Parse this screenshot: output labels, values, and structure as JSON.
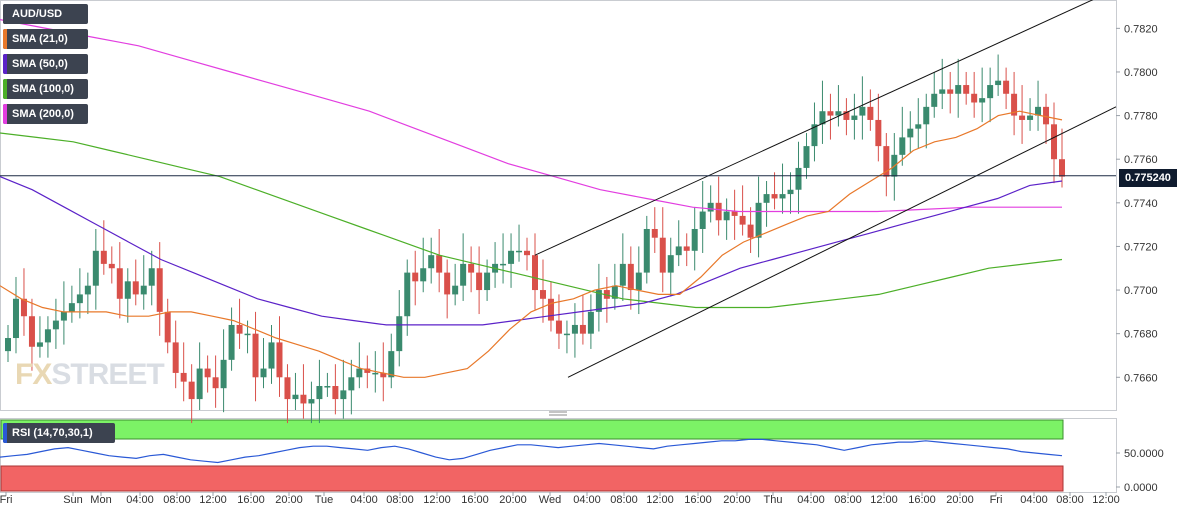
{
  "chart_data": {
    "type": "candlestick",
    "symbol": "AUD/USD",
    "last_price": "0.775240",
    "indicators": [
      {
        "label": "SMA (21,0)",
        "color": "#e8782a"
      },
      {
        "label": "SMA (50,0)",
        "color": "#5b22c8"
      },
      {
        "label": "SMA (100,0)",
        "color": "#4caf28"
      },
      {
        "label": "SMA (200,0)",
        "color": "#e23ee0"
      }
    ],
    "rsi_label": "RSI (14,70,30,1)",
    "y_ticks": [
      "0.7820",
      "0.7800",
      "0.7780",
      "0.7760",
      "0.7740",
      "0.7720",
      "0.7700",
      "0.7680",
      "0.7660"
    ],
    "ylim": [
      0.7645,
      0.7833
    ],
    "rsi_ticks": [
      "50.0000",
      "0.0000"
    ],
    "x_ticks": [
      "Fri",
      "Sun",
      "Mon",
      "04:00",
      "08:00",
      "12:00",
      "16:00",
      "20:00",
      "Tue",
      "04:00",
      "08:00",
      "12:00",
      "16:00",
      "20:00",
      "Wed",
      "04:00",
      "08:00",
      "12:00",
      "16:00",
      "20:00",
      "Thu",
      "04:00",
      "08:00",
      "12:00",
      "16:00",
      "20:00",
      "Fri",
      "04:00",
      "08:00",
      "12:00"
    ],
    "candles_close": [
      0.7678,
      0.7696,
      0.7688,
      0.7674,
      0.7676,
      0.7682,
      0.7686,
      0.769,
      0.7694,
      0.7698,
      0.7702,
      0.7718,
      0.7712,
      0.771,
      0.7696,
      0.7704,
      0.7698,
      0.7702,
      0.771,
      0.769,
      0.7676,
      0.7662,
      0.7658,
      0.765,
      0.7664,
      0.766,
      0.7655,
      0.7668,
      0.7684,
      0.768,
      0.768,
      0.766,
      0.7664,
      0.7676,
      0.766,
      0.765,
      0.7652,
      0.7648,
      0.765,
      0.7656,
      0.7656,
      0.765,
      0.7654,
      0.766,
      0.7664,
      0.7662,
      0.7662,
      0.766,
      0.7672,
      0.7688,
      0.7708,
      0.7704,
      0.771,
      0.7716,
      0.7708,
      0.7698,
      0.7702,
      0.7712,
      0.7708,
      0.77,
      0.7708,
      0.7712,
      0.7712,
      0.7718,
      0.7718,
      0.7716,
      0.77,
      0.7696,
      0.7686,
      0.768,
      0.768,
      0.7684,
      0.768,
      0.769,
      0.77,
      0.7696,
      0.7702,
      0.7712,
      0.77,
      0.7708,
      0.7728,
      0.7724,
      0.7708,
      0.7716,
      0.772,
      0.7718,
      0.7728,
      0.7736,
      0.774,
      0.7732,
      0.7736,
      0.7734,
      0.773,
      0.7724,
      0.774,
      0.7744,
      0.7742,
      0.7744,
      0.7746,
      0.7756,
      0.7766,
      0.7776,
      0.7782,
      0.778,
      0.7782,
      0.7778,
      0.778,
      0.7784,
      0.7778,
      0.7766,
      0.7752,
      0.7762,
      0.777,
      0.7774,
      0.7776,
      0.7784,
      0.779,
      0.7792,
      0.779,
      0.7794,
      0.779,
      0.7786,
      0.7788,
      0.7794,
      0.7796,
      0.779,
      0.778,
      0.7778,
      0.778,
      0.7784,
      0.7776,
      0.776,
      0.7752
    ],
    "sma21": [
      0.7702,
      0.7696,
      0.7692,
      0.769,
      0.769,
      0.769,
      0.7688,
      0.7688,
      0.769,
      0.769,
      0.7688,
      0.7686,
      0.7682,
      0.7678,
      0.7675,
      0.7672,
      0.7668,
      0.7664,
      0.7662,
      0.766,
      0.766,
      0.7662,
      0.7664,
      0.7672,
      0.7682,
      0.769,
      0.7694,
      0.7696,
      0.77,
      0.7702,
      0.77,
      0.7698,
      0.7698,
      0.7706,
      0.7716,
      0.7722,
      0.7726,
      0.773,
      0.7734,
      0.7736,
      0.7744,
      0.775,
      0.7756,
      0.7764,
      0.7768,
      0.777,
      0.7774,
      0.778,
      0.7782,
      0.778,
      0.7778
    ],
    "sma50": [
      0.7752,
      0.7746,
      0.7738,
      0.773,
      0.7722,
      0.7714,
      0.7708,
      0.7702,
      0.7696,
      0.7692,
      0.7688,
      0.7686,
      0.7684,
      0.7684,
      0.7684,
      0.7684,
      0.7686,
      0.7688,
      0.769,
      0.7692,
      0.7694,
      0.7698,
      0.7704,
      0.771,
      0.7714,
      0.7718,
      0.7722,
      0.7726,
      0.773,
      0.7734,
      0.7738,
      0.7742,
      0.7748,
      0.775
    ],
    "sma100": [
      0.7772,
      0.777,
      0.7768,
      0.7764,
      0.776,
      0.7756,
      0.7752,
      0.7746,
      0.774,
      0.7734,
      0.7728,
      0.7722,
      0.7716,
      0.7712,
      0.7708,
      0.7704,
      0.77,
      0.7696,
      0.7694,
      0.7692,
      0.7692,
      0.7692,
      0.7694,
      0.7696,
      0.7698,
      0.7702,
      0.7706,
      0.771,
      0.7712,
      0.7714
    ],
    "sma200": [
      0.7824,
      0.782,
      0.7816,
      0.7812,
      0.7806,
      0.78,
      0.7794,
      0.7788,
      0.7782,
      0.7774,
      0.7766,
      0.7758,
      0.7752,
      0.7746,
      0.7742,
      0.7738,
      0.7736,
      0.7736,
      0.7736,
      0.7736,
      0.7737,
      0.7738,
      0.7738,
      0.7738
    ],
    "channel": {
      "upper": [
        [
          "Wed 00:00",
          0.7716
        ],
        [
          "Fri 08:00",
          0.7835
        ]
      ],
      "lower": [
        [
          "Wed 04:00",
          0.766
        ],
        [
          "Fri 08:00",
          0.7782
        ]
      ]
    },
    "rsi_values": [
      44,
      46,
      48,
      52,
      56,
      58,
      54,
      50,
      46,
      44,
      42,
      46,
      48,
      44,
      40,
      38,
      36,
      40,
      44,
      46,
      50,
      54,
      58,
      60,
      60,
      58,
      56,
      54,
      58,
      60,
      56,
      50,
      44,
      40,
      42,
      48,
      54,
      58,
      62,
      62,
      60,
      58,
      60,
      62,
      64,
      62,
      60,
      58,
      56,
      60,
      62,
      64,
      66,
      68,
      68,
      70,
      70,
      68,
      66,
      64,
      62,
      58,
      54,
      58,
      62,
      64,
      66,
      66,
      68,
      66,
      64,
      62,
      60,
      58,
      56,
      52,
      50,
      48,
      46
    ]
  }
}
